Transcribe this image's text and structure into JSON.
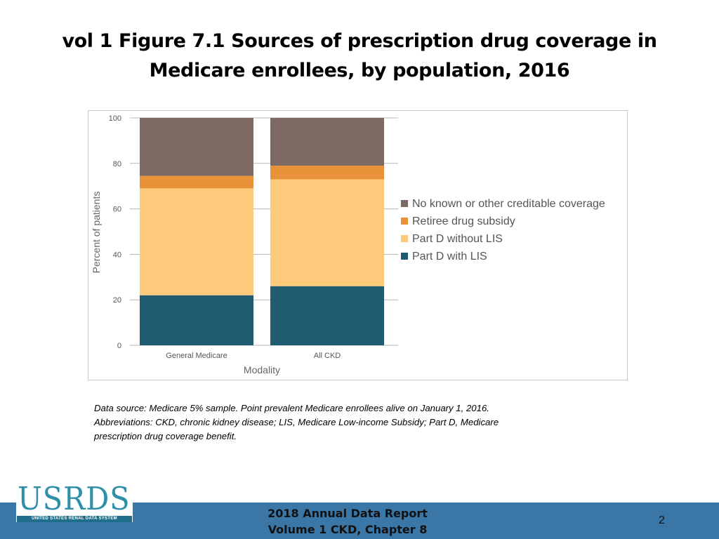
{
  "slide": {
    "title_line1": "vol 1 Figure 7.1 Sources of prescription drug coverage in",
    "title_line2": "Medicare enrollees, by population, 2016"
  },
  "chart_data": {
    "type": "bar",
    "stacked": true,
    "categories": [
      "General Medicare",
      "All CKD"
    ],
    "series": [
      {
        "name": "Part D with LIS",
        "color": "#1f5c72",
        "values": [
          22,
          26
        ]
      },
      {
        "name": "Part D without LIS",
        "color": "#fdc97a",
        "values": [
          47,
          47
        ]
      },
      {
        "name": "Retiree drug subsidy",
        "color": "#e8923a",
        "values": [
          5.5,
          6
        ]
      },
      {
        "name": "No known or other creditable coverage",
        "color": "#7d6a63",
        "values": [
          25.5,
          21
        ]
      }
    ],
    "legend_order": [
      "No known or other creditable coverage",
      "Retiree drug subsidy",
      "Part D without LIS",
      "Part D with LIS"
    ],
    "legend_position": "right",
    "xlabel": "Modality",
    "ylabel": "Percent of patients",
    "ylim": [
      0,
      100
    ],
    "yticks": [
      0,
      20,
      40,
      60,
      80,
      100
    ],
    "grid": true
  },
  "footnote": {
    "line1": "Data source: Medicare 5% sample. Point prevalent Medicare enrollees alive on January 1, 2016.",
    "line2": "Abbreviations: CKD, chronic kidney disease; LIS, Medicare Low-income Subsidy; Part D, Medicare",
    "line3": "prescription drug coverage benefit."
  },
  "footer": {
    "line1": "2018 Annual Data Report",
    "line2": "Volume 1 CKD, Chapter 8",
    "page_number": "2"
  },
  "logo": {
    "main": "USRDS",
    "sub": "UNITED STATES RENAL DATA SYSTEM"
  }
}
